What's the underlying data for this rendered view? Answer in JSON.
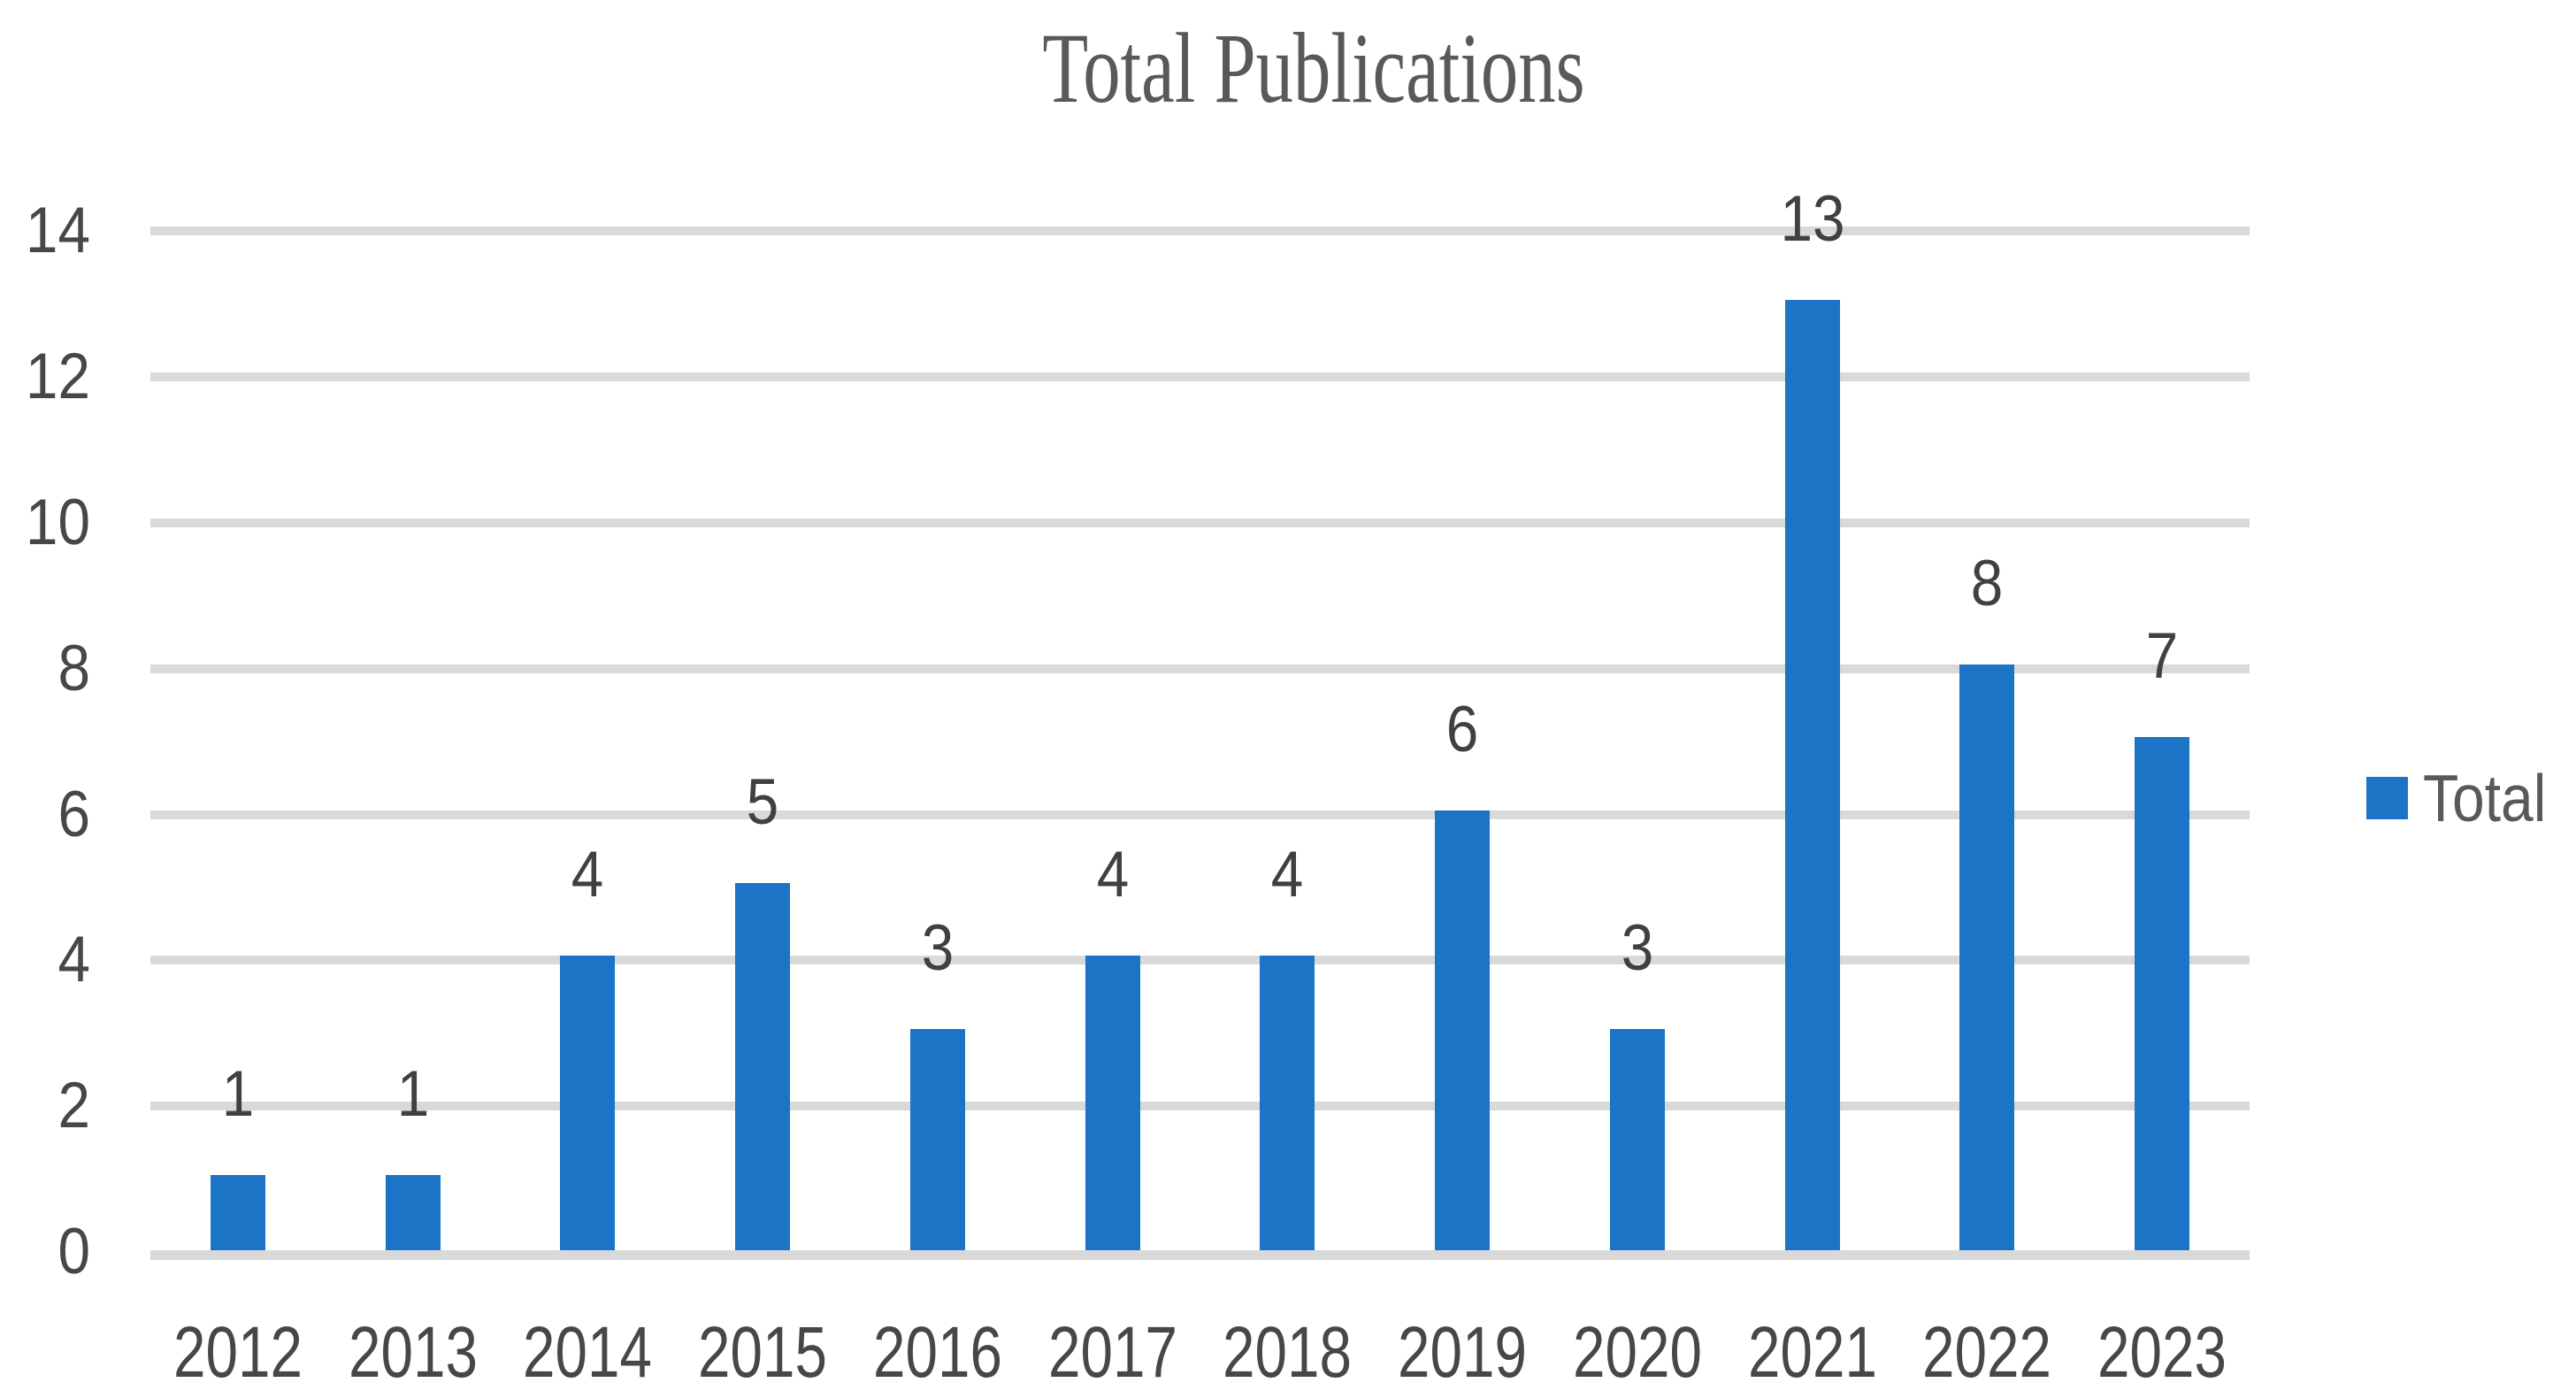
{
  "chart_data": {
    "type": "bar",
    "title": "Total Publications",
    "categories": [
      "2012",
      "2013",
      "2014",
      "2015",
      "2016",
      "2017",
      "2018",
      "2019",
      "2020",
      "2021",
      "2022",
      "2023"
    ],
    "series": [
      {
        "name": "Total",
        "values": [
          1,
          1,
          4,
          5,
          3,
          4,
          4,
          6,
          3,
          13,
          8,
          7
        ]
      }
    ],
    "data_labels": [
      "1",
      "1",
      "4",
      "5",
      "3",
      "4",
      "4",
      "6",
      "3",
      "13",
      "8",
      "7"
    ],
    "xlabel": "",
    "ylabel": "",
    "ylim": [
      0,
      14
    ],
    "y_ticks": [
      "0",
      "2",
      "4",
      "6",
      "8",
      "10",
      "12",
      "14"
    ],
    "grid": "horizontal",
    "legend_position": "right-middle",
    "colors": {
      "bar": "#1B74C6",
      "gridline": "#D9D9D9",
      "axis_line": "#D9D9D9",
      "title_text": "#595959",
      "axis_text": "#474747",
      "data_label_text": "#404040",
      "legend_text": "#595959"
    }
  }
}
